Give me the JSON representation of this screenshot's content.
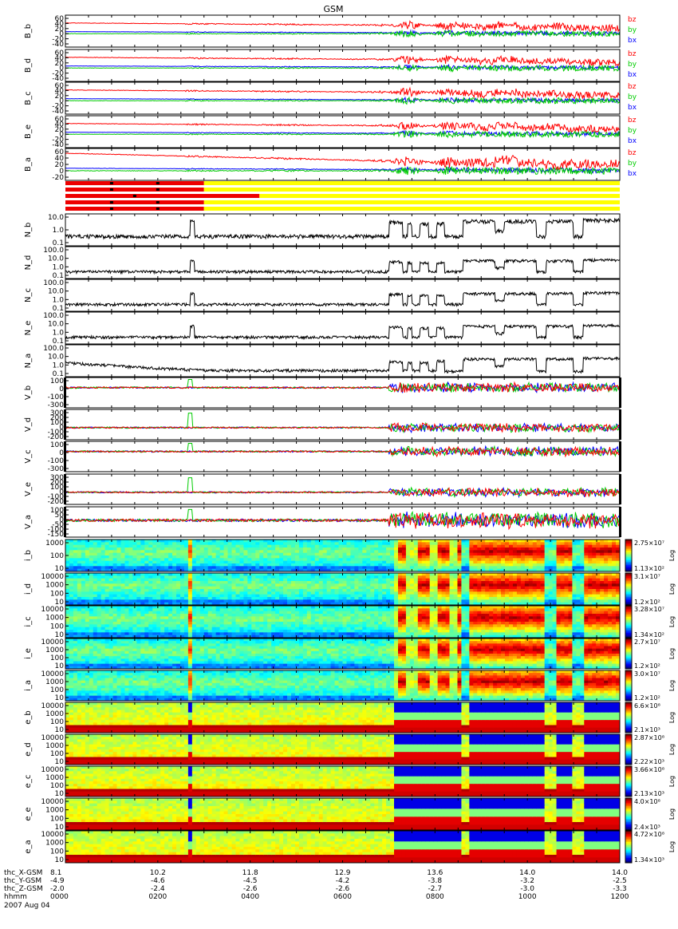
{
  "title": "GSM",
  "colors": {
    "bz": "#ff0000",
    "by": "#00cc00",
    "bx": "#0000ff",
    "line": "#000000",
    "state_red": "#ee0000",
    "state_yellow": "#ffff00"
  },
  "chart_data": {
    "type": "multi-panel time series and spectrograms",
    "date": "2007 Aug 04",
    "x_axis": {
      "hhmm": [
        "0000",
        "0200",
        "0400",
        "0600",
        "0800",
        "1000",
        "1200"
      ],
      "hhmm_hours": [
        0,
        2,
        4,
        6,
        8,
        10,
        12
      ],
      "xlim_hours": [
        0,
        12
      ],
      "ephemeris": [
        {
          "label": "thc_X-GSM",
          "values": [
            "8.1",
            "10.2",
            "11.8",
            "12.9",
            "13.6",
            "14.0",
            "14.0"
          ]
        },
        {
          "label": "thc_Y-GSM",
          "values": [
            "-4.9",
            "-4.6",
            "-4.5",
            "-4.2",
            "-3.8",
            "-3.2",
            "-2.5"
          ]
        },
        {
          "label": "thc_Z-GSM",
          "values": [
            "-2.0",
            "-2.4",
            "-2.6",
            "-2.6",
            "-2.7",
            "-3.0",
            "-3.3"
          ]
        },
        {
          "label": "hhmm",
          "values": [
            "0000",
            "0200",
            "0400",
            "0600",
            "0800",
            "1000",
            "1200"
          ]
        }
      ]
    },
    "bfield_panels": [
      {
        "label": "B_b",
        "ticks": [
          "60",
          "40",
          "20",
          "0",
          "-20",
          "-40"
        ],
        "ylim": [
          -40,
          60
        ]
      },
      {
        "label": "B_d",
        "ticks": [
          "60",
          "40",
          "20",
          "0",
          "-20",
          "-40"
        ],
        "ylim": [
          -40,
          60
        ]
      },
      {
        "label": "B_c",
        "ticks": [
          "60",
          "40",
          "20",
          "0",
          "-20",
          "-40"
        ],
        "ylim": [
          -40,
          60
        ]
      },
      {
        "label": "B_e",
        "ticks": [
          "60",
          "40",
          "20",
          "0",
          "-20",
          "-40"
        ],
        "ylim": [
          -40,
          60
        ]
      },
      {
        "label": "B_a",
        "ticks": [
          "60",
          "40",
          "20",
          "0",
          "-20"
        ],
        "ylim": [
          -20,
          60
        ]
      }
    ],
    "bfield_legend": [
      "bz",
      "by",
      "bx"
    ],
    "state_bars": [
      {
        "red_until_hours": 3.0,
        "marks_hours": [
          1.0,
          2.0
        ]
      },
      {
        "red_until_hours": 3.0,
        "marks_hours": [
          1.0,
          2.0
        ]
      },
      {
        "red_until_hours": 4.2,
        "marks_hours": [
          1.5
        ]
      },
      {
        "red_until_hours": 3.0,
        "marks_hours": [
          1.0,
          2.0
        ]
      },
      {
        "red_until_hours": 3.0,
        "marks_hours": [
          1.0,
          2.0
        ]
      }
    ],
    "density_panels": [
      {
        "label": "N_b",
        "ticks": [
          "10.0",
          "1.0",
          "0.1"
        ],
        "ylim_log": [
          0.05,
          20
        ]
      },
      {
        "label": "N_d",
        "ticks": [
          "100.0",
          "10.0",
          "1.0",
          "0.1"
        ],
        "ylim_log": [
          0.05,
          200
        ]
      },
      {
        "label": "N_c",
        "ticks": [
          "100.0",
          "10.0",
          "1.0",
          "0.1"
        ],
        "ylim_log": [
          0.05,
          200
        ]
      },
      {
        "label": "N_e",
        "ticks": [
          "100.0",
          "10.0",
          "1.0",
          "0.1"
        ],
        "ylim_log": [
          0.05,
          200
        ]
      },
      {
        "label": "N_a",
        "ticks": [
          "100.0",
          "10.0",
          "1.0",
          "0.1"
        ],
        "ylim_log": [
          0.05,
          200
        ]
      }
    ],
    "velocity_panels": [
      {
        "label": "V_b",
        "ticks": [
          "100",
          "0",
          "-100",
          "-300"
        ],
        "ylim": [
          -300,
          150
        ]
      },
      {
        "label": "V_d",
        "ticks": [
          "300",
          "200",
          "100",
          "0",
          "-100",
          "-200"
        ],
        "ylim": [
          -200,
          300
        ]
      },
      {
        "label": "V_c",
        "ticks": [
          "100",
          "0",
          "-100",
          "-300"
        ],
        "ylim": [
          -300,
          150
        ]
      },
      {
        "label": "V_e",
        "ticks": [
          "300",
          "200",
          "100",
          "0",
          "-100",
          "-200"
        ],
        "ylim": [
          -200,
          300
        ]
      },
      {
        "label": "V_a",
        "ticks": [
          "100",
          "50",
          "0",
          "-50",
          "-100",
          "-150"
        ],
        "ylim": [
          -150,
          120
        ]
      }
    ],
    "spectrogram_panels": [
      {
        "label": "i_b",
        "ticks": [
          "1000",
          "100",
          "10"
        ],
        "cmax": "2.75×10⁷",
        "cmin": "1.13×10²",
        "scale": "Log"
      },
      {
        "label": "i_d",
        "ticks": [
          "10000",
          "1000",
          "100",
          "10"
        ],
        "cmax": "3.1×10⁷",
        "cmin": "1.2×10²",
        "scale": "Log"
      },
      {
        "label": "i_c",
        "ticks": [
          "10000",
          "1000",
          "100",
          "10"
        ],
        "cmax": "3.28×10⁷",
        "cmin": "1.34×10²",
        "scale": "Log"
      },
      {
        "label": "i_e",
        "ticks": [
          "10000",
          "1000",
          "100",
          "10"
        ],
        "cmax": "2.7×10⁷",
        "cmin": "1.2×10²",
        "scale": "Log"
      },
      {
        "label": "i_a",
        "ticks": [
          "10000",
          "1000",
          "100",
          "10"
        ],
        "cmax": "3.0×10⁷",
        "cmin": "1.2×10²",
        "scale": "Log"
      },
      {
        "label": "e_b",
        "ticks": [
          "10000",
          "1000",
          "100",
          "10"
        ],
        "cmax": "6.6×10⁸",
        "cmin": "2.1×10³",
        "scale": "Log"
      },
      {
        "label": "e_d",
        "ticks": [
          "10000",
          "1000",
          "100",
          "10"
        ],
        "cmax": "2.87×10⁸",
        "cmin": "2.22×10³",
        "scale": "Log"
      },
      {
        "label": "e_c",
        "ticks": [
          "10000",
          "1000",
          "100",
          "10"
        ],
        "cmax": "3.66×10⁸",
        "cmin": "2.13×10³",
        "scale": "Log"
      },
      {
        "label": "e_e",
        "ticks": [
          "10000",
          "1000",
          "100",
          "10"
        ],
        "cmax": "4.0×10⁸",
        "cmin": "2.4×10³",
        "scale": "Log"
      },
      {
        "label": "e_a",
        "ticks": [
          "10000",
          "1000",
          "100",
          "10"
        ],
        "cmax": "4.72×10⁸",
        "cmin": "1.34×10³",
        "scale": "Log"
      }
    ]
  }
}
